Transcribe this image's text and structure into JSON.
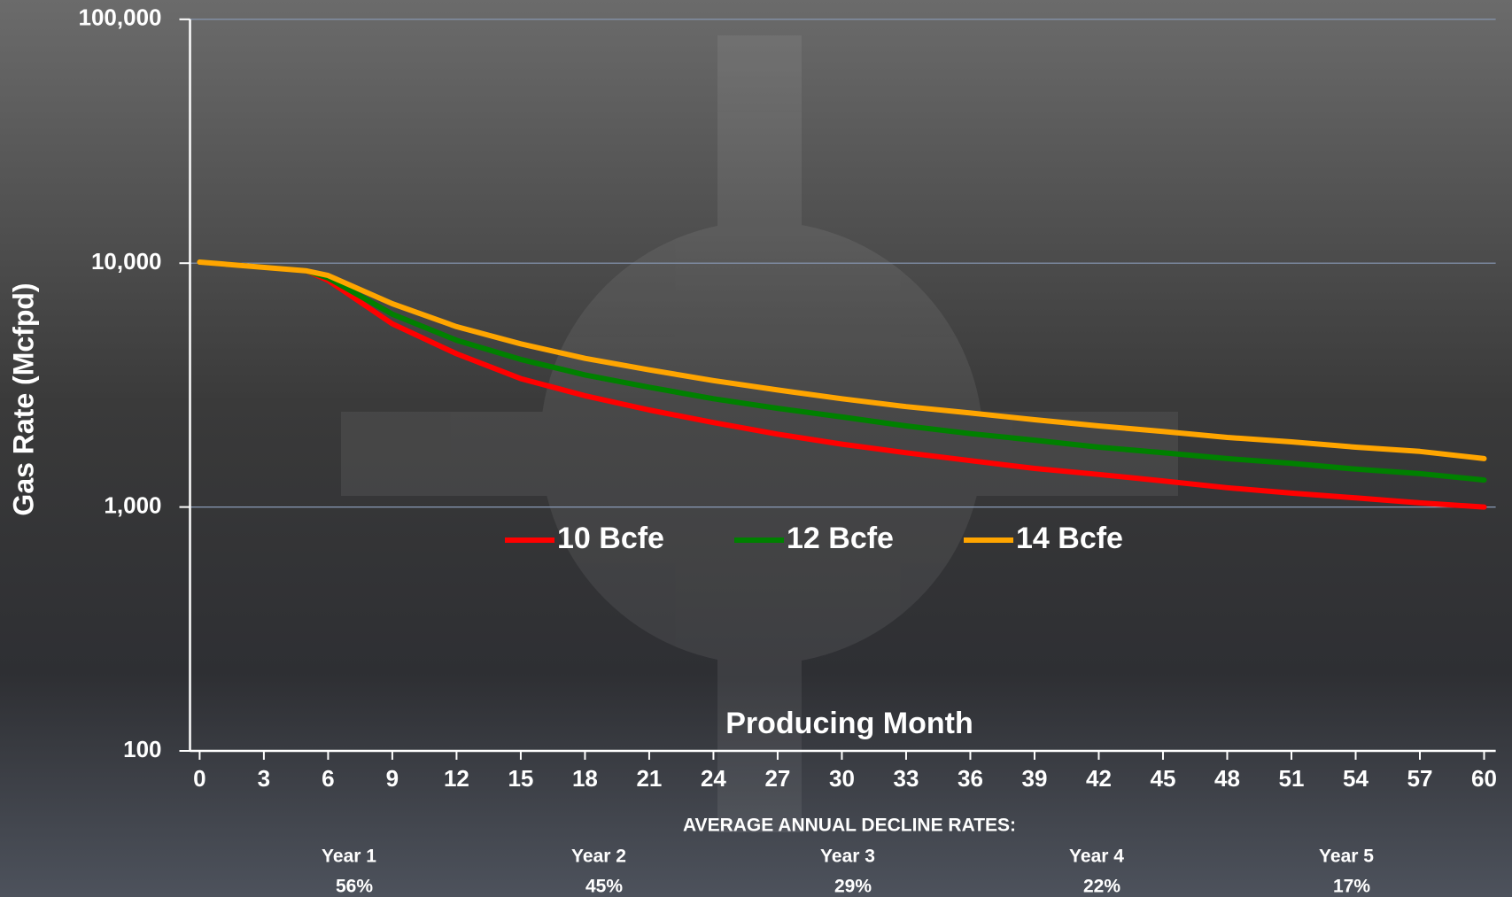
{
  "chart_data": {
    "type": "line",
    "x_label": "Producing Month",
    "y_label": "Gas Rate (Mcfpd)",
    "x": [
      0,
      5,
      6,
      9,
      12,
      15,
      18,
      21,
      24,
      27,
      30,
      33,
      36,
      39,
      42,
      45,
      48,
      51,
      54,
      57,
      60
    ],
    "series": [
      {
        "name": "10 Bcfe",
        "color": "#ff0000",
        "values": [
          10100,
          9300,
          8500,
          5640,
          4250,
          3360,
          2860,
          2500,
          2220,
          1990,
          1810,
          1670,
          1550,
          1440,
          1360,
          1280,
          1200,
          1140,
          1090,
          1040,
          1000
        ]
      },
      {
        "name": "12 Bcfe",
        "color": "#008000",
        "values": [
          10100,
          9300,
          8700,
          6180,
          4830,
          4030,
          3480,
          3100,
          2780,
          2540,
          2340,
          2150,
          2000,
          1880,
          1760,
          1670,
          1580,
          1510,
          1430,
          1370,
          1290
        ]
      },
      {
        "name": "14 Bcfe",
        "color": "#ffa500",
        "values": [
          10100,
          9300,
          8900,
          6820,
          5490,
          4670,
          4070,
          3650,
          3300,
          3020,
          2780,
          2580,
          2430,
          2280,
          2150,
          2040,
          1930,
          1850,
          1760,
          1690,
          1580
        ]
      }
    ],
    "xlim": [
      0,
      60
    ],
    "xticks": [
      0,
      3,
      6,
      9,
      12,
      15,
      18,
      21,
      24,
      27,
      30,
      33,
      36,
      39,
      42,
      45,
      48,
      51,
      54,
      57,
      60
    ],
    "ylim": [
      100,
      100000
    ],
    "yticks": [
      100,
      {
        "value": 1000,
        "label": "1,000"
      },
      {
        "value": 10000,
        "label": "10,000"
      },
      {
        "value": 100000,
        "label": "100,000"
      }
    ],
    "log_y": true,
    "grid": true,
    "legend": "center",
    "decline_rates": {
      "title": "AVERAGE ANNUAL DECLINE RATES:",
      "periods": [
        "Year 1",
        "Year 2",
        "Year 3",
        "Year 4",
        "Year 5"
      ],
      "rates": [
        "56%",
        "45%",
        "29%",
        "22%",
        "17%"
      ]
    }
  }
}
